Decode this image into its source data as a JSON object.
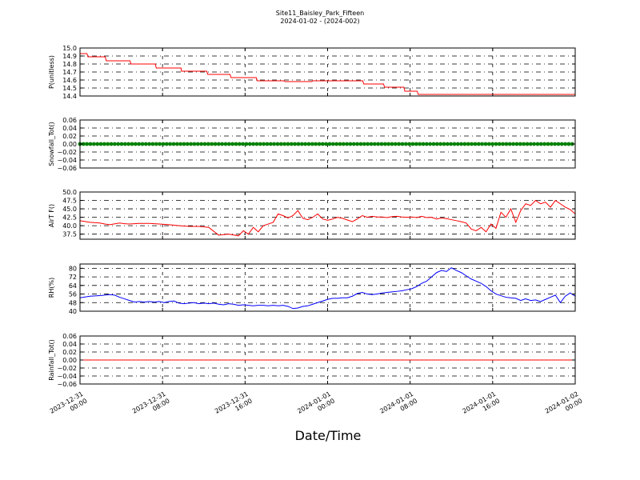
{
  "figure": {
    "title_line1": "Site11_Baisley_Park_Fifteen",
    "title_line2": "2024-01-02 - (2024-002)",
    "xlabel": "Date/Time"
  },
  "chart_data": [
    {
      "type": "line",
      "ylabel": "P(unitless)",
      "ylim": [
        14.4,
        15.0
      ],
      "yticks": [
        "15.0",
        "14.9",
        "14.8",
        "14.7",
        "14.6",
        "14.5",
        "14.4"
      ],
      "tick_values": [
        15.0,
        14.9,
        14.8,
        14.7,
        14.6,
        14.5,
        14.4
      ],
      "color": "#ff0000",
      "grid": true,
      "series": [
        {
          "x": [
            0,
            1.4,
            1.6,
            5.1,
            5.3,
            10.1,
            10.3,
            15.2,
            15.4,
            20.4,
            20.5,
            25.6,
            25.8,
            30.3,
            30.5,
            35.6,
            35.8,
            41.2,
            41.4,
            46.8,
            47.0,
            57.1,
            57.3,
            61.3,
            61.5,
            65.4,
            65.6,
            68.1,
            68.3,
            74.1,
            74.3,
            76.7,
            76.9,
            80.2,
            80.4,
            81.9,
            82.1,
            86.8,
            87.0,
            100
          ],
          "y": [
            14.93,
            14.93,
            14.89,
            14.89,
            14.84,
            14.84,
            14.8,
            14.8,
            14.75,
            14.75,
            14.71,
            14.71,
            14.67,
            14.67,
            14.63,
            14.63,
            14.59,
            14.59,
            14.58,
            14.58,
            14.59,
            14.59,
            14.55,
            14.55,
            14.51,
            14.51,
            14.46,
            14.46,
            14.42,
            14.42,
            14.42,
            14.42,
            14.42,
            14.42,
            14.42,
            14.42,
            14.42,
            14.42,
            14.42,
            14.42
          ]
        }
      ]
    },
    {
      "type": "scatter",
      "ylabel": "Snowfall_Tot()",
      "ylim": [
        -0.06,
        0.06
      ],
      "yticks": [
        "0.06",
        "0.04",
        "0.02",
        "0.00",
        "−0.02",
        "−0.04",
        "−0.06"
      ],
      "tick_values": [
        0.06,
        0.04,
        0.02,
        0.0,
        -0.02,
        -0.04,
        -0.06
      ],
      "color": "#008000",
      "grid": true,
      "series": [
        {
          "x_start": 0,
          "x_end": 100,
          "x_step": 0.7,
          "y": 0.0
        }
      ]
    },
    {
      "type": "line",
      "ylabel": "AirT F()",
      "ylim": [
        36.0,
        50.0
      ],
      "yticks": [
        "50.0",
        "47.5",
        "45.0",
        "42.5",
        "40.0",
        "37.5"
      ],
      "tick_values": [
        50.0,
        47.5,
        45.0,
        42.5,
        40.0,
        37.5
      ],
      "color": "#ff0000",
      "grid": true,
      "series": [
        {
          "x": [
            0,
            2,
            4,
            5,
            6,
            8,
            9,
            10,
            12,
            14,
            16,
            18,
            20,
            22,
            24,
            26,
            28,
            30,
            32,
            33,
            34,
            35,
            36,
            37,
            38,
            39,
            40,
            41,
            42,
            43,
            44,
            45,
            46,
            47,
            48,
            49,
            50,
            51,
            52,
            53,
            54,
            55,
            56,
            57,
            58,
            59,
            60,
            61,
            62,
            63,
            64,
            65,
            66,
            67,
            68,
            69,
            70,
            71,
            72,
            73,
            74,
            75,
            76,
            77,
            78,
            79,
            80,
            81,
            82,
            83,
            84,
            85,
            86,
            87,
            88,
            89,
            90,
            91,
            92,
            93,
            94,
            95,
            96,
            97,
            98,
            99,
            100
          ],
          "y": [
            41.5,
            41.0,
            40.8,
            40.5,
            40.3,
            40.8,
            40.6,
            40.5,
            40.7,
            40.7,
            40.5,
            40.3,
            40.0,
            39.8,
            39.8,
            39.5,
            37.2,
            37.5,
            37.0,
            38.5,
            37.5,
            39.5,
            38.2,
            40.0,
            40.5,
            41.0,
            43.5,
            43.0,
            42.3,
            43.0,
            44.5,
            42.2,
            41.8,
            42.5,
            43.5,
            42.0,
            41.6,
            42.0,
            42.5,
            42.2,
            41.7,
            41.2,
            42.0,
            43.0,
            42.5,
            42.8,
            42.6,
            42.6,
            42.4,
            42.7,
            42.8,
            42.6,
            42.5,
            42.6,
            42.4,
            42.8,
            42.4,
            42.5,
            42.0,
            42.3,
            42.1,
            41.8,
            41.5,
            41.2,
            40.8,
            39.0,
            38.5,
            39.5,
            38.2,
            40.5,
            39.2,
            44.0,
            42.5,
            45.0,
            41.0,
            44.5,
            46.5,
            46.0,
            47.5,
            46.5,
            47.0,
            45.5,
            47.5,
            46.5,
            45.5,
            44.8,
            43.5
          ]
        }
      ]
    },
    {
      "type": "line",
      "ylabel": "RH(%)",
      "ylim": [
        40,
        84
      ],
      "yticks": [
        "80",
        "72",
        "64",
        "56",
        "48",
        "40"
      ],
      "tick_values": [
        80,
        72,
        64,
        56,
        48,
        40
      ],
      "color": "#0000ff",
      "grid": true,
      "series": [
        {
          "x": [
            0,
            2,
            4,
            5,
            6,
            7,
            8,
            9,
            10,
            11,
            12,
            13,
            14,
            15,
            16,
            17,
            18,
            19,
            20,
            21,
            22,
            23,
            24,
            25,
            26,
            27,
            28,
            29,
            30,
            31,
            32,
            33,
            34,
            35,
            36,
            37,
            38,
            39,
            40,
            41,
            42,
            43,
            44,
            45,
            46,
            47,
            48,
            49,
            50,
            51,
            52,
            53,
            54,
            55,
            56,
            57,
            58,
            59,
            60,
            61,
            62,
            63,
            64,
            65,
            66,
            67,
            68,
            69,
            70,
            71,
            72,
            73,
            74,
            75,
            76,
            77,
            78,
            79,
            80,
            81,
            82,
            83,
            84,
            85,
            86,
            87,
            88,
            89,
            90,
            91,
            92,
            93,
            94,
            95,
            96,
            97,
            98,
            99,
            100
          ],
          "y": [
            52.5,
            54.0,
            54.5,
            55.0,
            55.5,
            55.0,
            53.0,
            51.5,
            50.0,
            48.5,
            49.0,
            48.5,
            49.0,
            48.5,
            49.0,
            48.0,
            49.0,
            49.5,
            47.5,
            47.0,
            47.5,
            48.0,
            47.0,
            47.5,
            47.0,
            47.5,
            46.5,
            46.0,
            47.0,
            46.5,
            45.5,
            46.0,
            45.5,
            45.0,
            45.5,
            45.5,
            45.0,
            45.5,
            45.0,
            45.5,
            44.5,
            42.5,
            43.0,
            44.5,
            45.0,
            46.5,
            48.0,
            49.5,
            51.0,
            52.0,
            52.0,
            52.5,
            52.5,
            54.0,
            56.5,
            57.5,
            56.0,
            55.5,
            56.0,
            57.0,
            57.5,
            58.0,
            58.5,
            59.0,
            60.0,
            61.0,
            63.0,
            66.0,
            68.0,
            72.0,
            76.0,
            78.0,
            77.0,
            80.5,
            78.0,
            76.0,
            73.0,
            70.0,
            68.0,
            66.0,
            63.0,
            59.0,
            56.0,
            54.5,
            53.0,
            52.5,
            52.0,
            50.0,
            51.5,
            50.0,
            50.5,
            49.0,
            51.0,
            53.0,
            55.0,
            48.0,
            54.0,
            57.0,
            54.0
          ]
        }
      ]
    },
    {
      "type": "line",
      "ylabel": "Rainfall_Tot()",
      "ylim": [
        -0.06,
        0.06
      ],
      "yticks": [
        "0.06",
        "0.04",
        "0.02",
        "0.00",
        "−0.02",
        "−0.04",
        "−0.06"
      ],
      "tick_values": [
        0.06,
        0.04,
        0.02,
        0.0,
        -0.02,
        -0.04,
        -0.06
      ],
      "color": "#ff0000",
      "grid": true,
      "series": [
        {
          "x": [
            0,
            100
          ],
          "y": [
            0.0,
            0.0
          ]
        }
      ]
    }
  ],
  "x_axis": {
    "ticks": [
      {
        "x": 0,
        "line1": "2023-12-31",
        "line2": "00:00"
      },
      {
        "x": 16.667,
        "line1": "2023-12-31",
        "line2": "08:00"
      },
      {
        "x": 33.333,
        "line1": "2023-12-31",
        "line2": "16:00"
      },
      {
        "x": 50,
        "line1": "2024-01-01",
        "line2": "00:00"
      },
      {
        "x": 66.667,
        "line1": "2024-01-01",
        "line2": "08:00"
      },
      {
        "x": 83.333,
        "line1": "2024-01-01",
        "line2": "16:00"
      },
      {
        "x": 100,
        "line1": "2024-01-02",
        "line2": "00:00"
      }
    ]
  }
}
